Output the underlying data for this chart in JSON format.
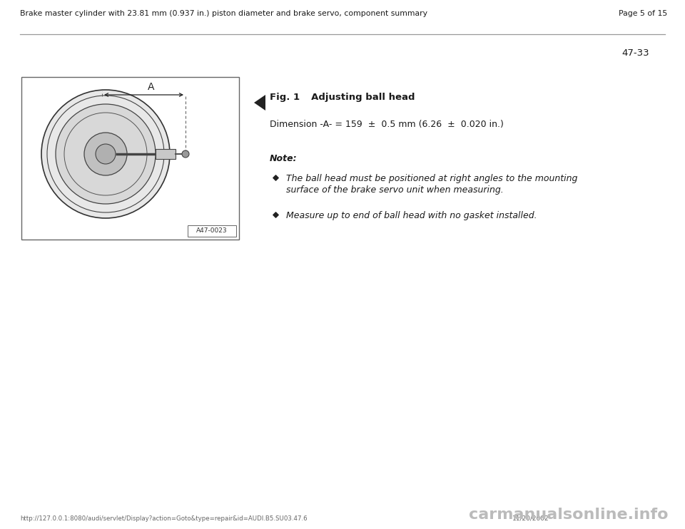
{
  "bg_color": "#ffffff",
  "header_text": "Brake master cylinder with 23.81 mm (0.937 in.) piston diameter and brake servo, component summary",
  "header_page": "Page 5 of 15",
  "page_number": "47-33",
  "fig_title_bold": "Fig. 1",
  "fig_title_rest": "     Adjusting ball head",
  "dimension_line": "Dimension -A- = 159  ±  0.5 mm (6.26  ±  0.020 in.)",
  "note_label": "Note:",
  "bullet1_line1": "The ball head must be positioned at right angles to the mounting",
  "bullet1_line2": "surface of the brake servo unit when measuring.",
  "bullet2": "Measure up to end of ball head with no gasket installed.",
  "image_label": "A47-0023",
  "url_text": "http://127.0.0.1:8080/audi/servlet/Display?action=Goto&type=repair&id=AUDI.B5.SU03.47.6",
  "date_text": "11/20/2002",
  "watermark": "carmanualsonline.info",
  "header_font_size": 7.8,
  "body_font_size": 9.0,
  "note_font_size": 9.0,
  "bullet_font_size": 9.0,
  "fig_title_font_size": 9.5,
  "page_num_font_size": 9.5,
  "header_line_color": "#999999",
  "text_color": "#1a1a1a",
  "dark_color": "#222222"
}
